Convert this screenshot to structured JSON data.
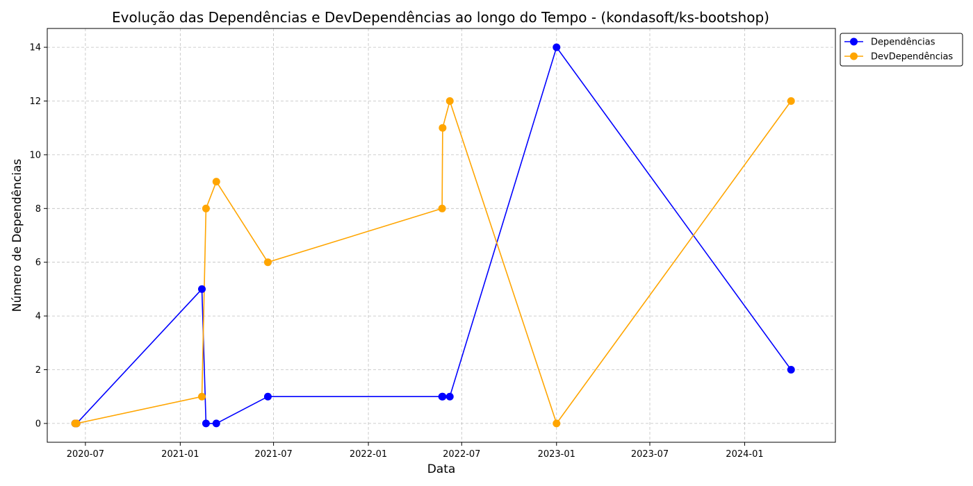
{
  "chart_data": {
    "type": "line",
    "title": "Evolução das Dependências e DevDependências ao longo do Tempo - (kondasoft/ks-bootshop)",
    "xlabel": "Data",
    "ylabel": "Número de Dependências",
    "x": [
      "2020-06-11",
      "2020-06-14",
      "2021-02-12",
      "2021-02-20",
      "2021-03-12",
      "2021-06-20",
      "2022-05-24",
      "2022-05-25",
      "2022-06-08",
      "2023-01-01",
      "2024-03-31"
    ],
    "series": [
      {
        "name": "Dependências",
        "color": "#0000ff",
        "values": [
          0,
          0,
          5,
          0,
          0,
          1,
          1,
          1,
          1,
          14,
          2
        ]
      },
      {
        "name": "DevDependências",
        "color": "#ffa500",
        "values": [
          0,
          0,
          1,
          8,
          9,
          6,
          8,
          11,
          12,
          0,
          12
        ]
      }
    ],
    "xticks": [
      "2020-07",
      "2021-01",
      "2021-07",
      "2022-01",
      "2022-07",
      "2023-01",
      "2023-07",
      "2024-01"
    ],
    "yticks": [
      0,
      2,
      4,
      6,
      8,
      10,
      12,
      14
    ],
    "xlim": [
      "2020-04-18",
      "2024-06-25"
    ],
    "ylim": [
      -0.7,
      14.7
    ],
    "grid": true,
    "legend_position": "upper right, outside plot"
  }
}
